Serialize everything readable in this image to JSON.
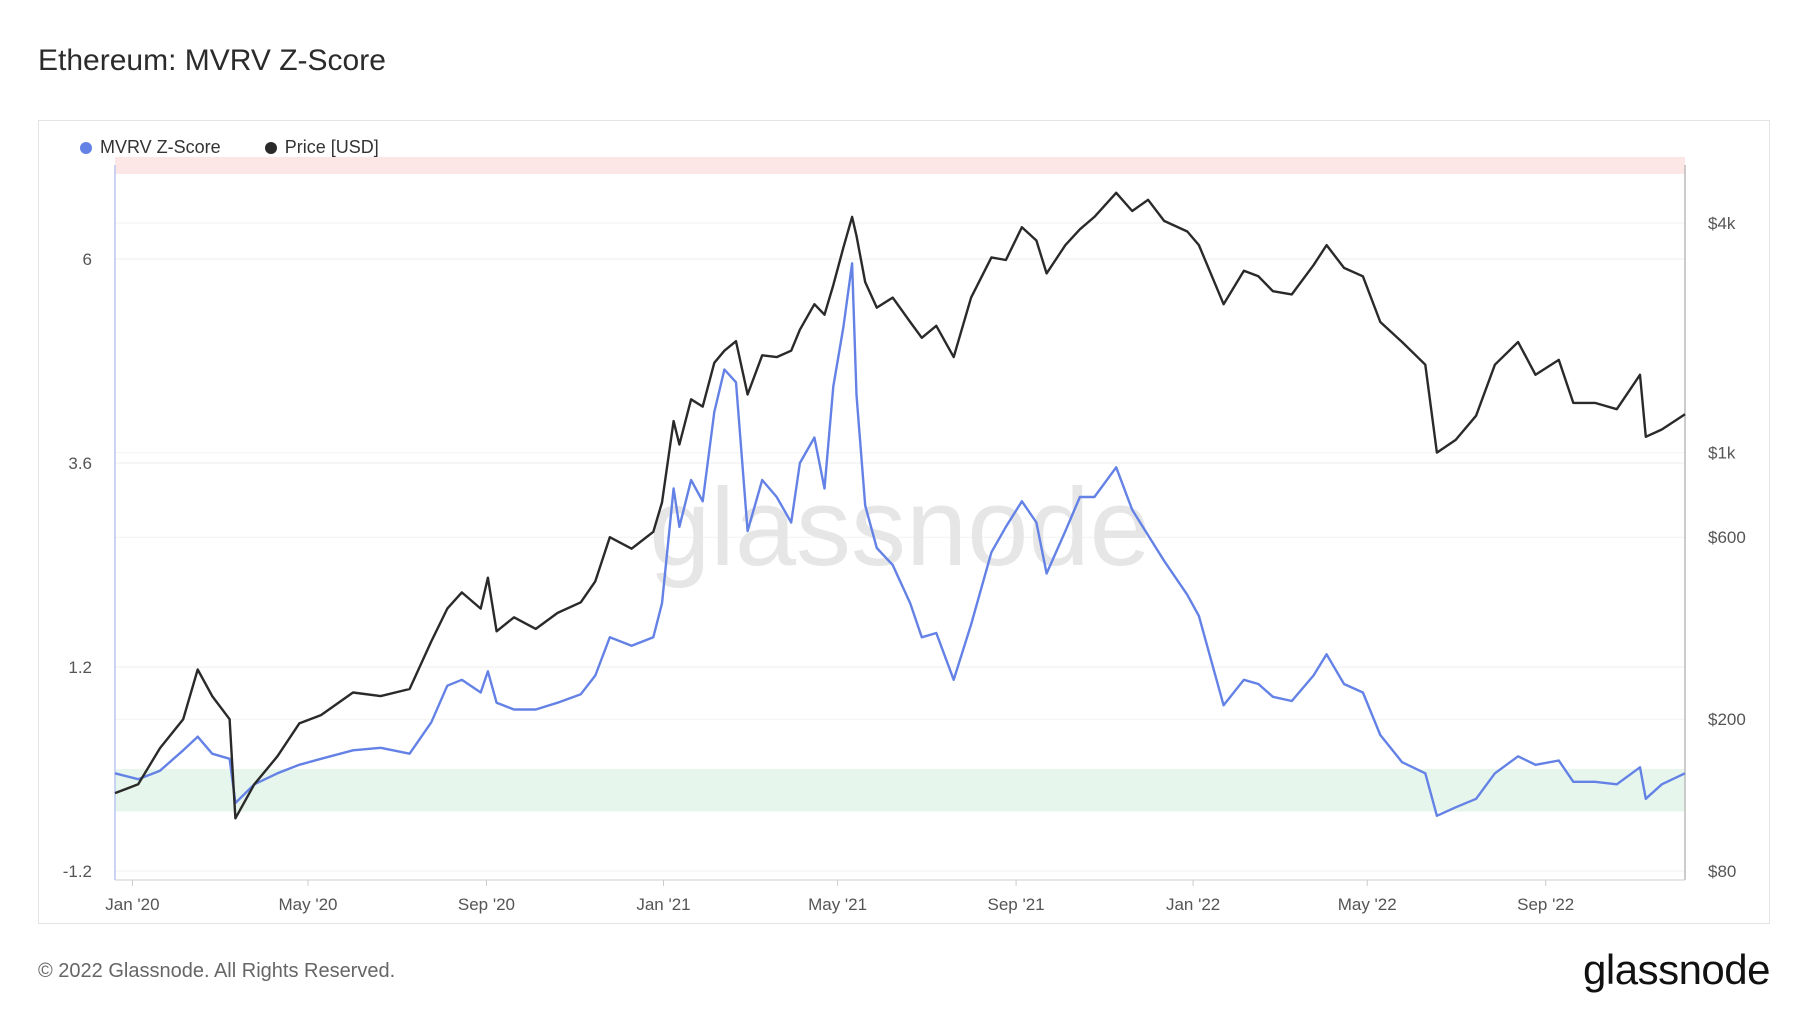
{
  "header": {
    "title": "Ethereum: MVRV Z-Score"
  },
  "footer": {
    "copyright": "© 2022 Glassnode. All Rights Reserved.",
    "brand": "glassnode"
  },
  "watermark": "glassnode",
  "colors": {
    "zscore": "#6482e6",
    "price": "#2a2a2a",
    "red_band": "#fde6e6",
    "green_band": "#e6f6ec"
  },
  "chart_data": {
    "type": "line",
    "title": "Ethereum: MVRV Z-Score",
    "legend_position": "top-left",
    "grid": true,
    "x_ticks": [
      "Jan '20",
      "May '20",
      "Sep '20",
      "Jan '21",
      "May '21",
      "Sep '21",
      "Jan '22",
      "May '22",
      "Sep '22"
    ],
    "x_range": [
      "2019-12-20",
      "2022-12-06"
    ],
    "left_axis": {
      "ticks": [
        "6",
        "3.6",
        "1.2",
        "-1.2"
      ],
      "tick_values": [
        6,
        3.6,
        1.2,
        -1.2
      ],
      "range": [
        -1.2,
        7.0
      ]
    },
    "right_axis": {
      "ticks": [
        "$4k",
        "$1k",
        "$600",
        "$200",
        "$80"
      ],
      "tick_values": [
        4000,
        1000,
        600,
        200,
        80
      ],
      "scale": "log",
      "range": [
        80,
        6500
      ]
    },
    "bands": [
      {
        "axis": "left",
        "from": 7.0,
        "to": 7.2,
        "color": "#fde6e6"
      },
      {
        "axis": "left",
        "from": -0.5,
        "to": 0.0,
        "color": "#e6f6ec"
      }
    ],
    "series": [
      {
        "name": "MVRV Z-Score",
        "axis": "left",
        "color": "#6482e6",
        "points": [
          [
            "2019-12-20",
            -0.05
          ],
          [
            "2020-01-05",
            -0.12
          ],
          [
            "2020-01-20",
            -0.02
          ],
          [
            "2020-02-05",
            0.22
          ],
          [
            "2020-02-15",
            0.38
          ],
          [
            "2020-02-25",
            0.18
          ],
          [
            "2020-03-08",
            0.12
          ],
          [
            "2020-03-12",
            -0.4
          ],
          [
            "2020-03-25",
            -0.18
          ],
          [
            "2020-04-10",
            -0.05
          ],
          [
            "2020-04-25",
            0.05
          ],
          [
            "2020-05-10",
            0.12
          ],
          [
            "2020-06-01",
            0.22
          ],
          [
            "2020-06-20",
            0.25
          ],
          [
            "2020-07-10",
            0.18
          ],
          [
            "2020-07-25",
            0.55
          ],
          [
            "2020-08-05",
            0.98
          ],
          [
            "2020-08-15",
            1.05
          ],
          [
            "2020-08-28",
            0.9
          ],
          [
            "2020-09-02",
            1.15
          ],
          [
            "2020-09-08",
            0.78
          ],
          [
            "2020-09-20",
            0.7
          ],
          [
            "2020-10-05",
            0.7
          ],
          [
            "2020-10-20",
            0.78
          ],
          [
            "2020-11-05",
            0.88
          ],
          [
            "2020-11-15",
            1.1
          ],
          [
            "2020-11-25",
            1.55
          ],
          [
            "2020-12-10",
            1.45
          ],
          [
            "2020-12-25",
            1.55
          ],
          [
            "2020-12-31",
            1.95
          ],
          [
            "2021-01-08",
            3.3
          ],
          [
            "2021-01-12",
            2.85
          ],
          [
            "2021-01-20",
            3.4
          ],
          [
            "2021-01-28",
            3.15
          ],
          [
            "2021-02-05",
            4.2
          ],
          [
            "2021-02-12",
            4.7
          ],
          [
            "2021-02-20",
            4.55
          ],
          [
            "2021-02-28",
            2.8
          ],
          [
            "2021-03-10",
            3.4
          ],
          [
            "2021-03-20",
            3.2
          ],
          [
            "2021-03-30",
            2.9
          ],
          [
            "2021-04-05",
            3.6
          ],
          [
            "2021-04-15",
            3.9
          ],
          [
            "2021-04-22",
            3.3
          ],
          [
            "2021-04-28",
            4.5
          ],
          [
            "2021-05-05",
            5.2
          ],
          [
            "2021-05-11",
            5.95
          ],
          [
            "2021-05-14",
            4.4
          ],
          [
            "2021-05-20",
            3.1
          ],
          [
            "2021-05-28",
            2.6
          ],
          [
            "2021-06-08",
            2.4
          ],
          [
            "2021-06-20",
            1.95
          ],
          [
            "2021-06-28",
            1.55
          ],
          [
            "2021-07-08",
            1.6
          ],
          [
            "2021-07-20",
            1.05
          ],
          [
            "2021-08-01",
            1.7
          ],
          [
            "2021-08-15",
            2.55
          ],
          [
            "2021-08-25",
            2.85
          ],
          [
            "2021-09-05",
            3.15
          ],
          [
            "2021-09-15",
            2.9
          ],
          [
            "2021-09-22",
            2.3
          ],
          [
            "2021-10-05",
            2.8
          ],
          [
            "2021-10-15",
            3.2
          ],
          [
            "2021-10-25",
            3.2
          ],
          [
            "2021-11-09",
            3.55
          ],
          [
            "2021-11-20",
            3.05
          ],
          [
            "2021-12-01",
            2.75
          ],
          [
            "2021-12-12",
            2.45
          ],
          [
            "2021-12-28",
            2.05
          ],
          [
            "2022-01-05",
            1.8
          ],
          [
            "2022-01-22",
            0.75
          ],
          [
            "2022-02-05",
            1.05
          ],
          [
            "2022-02-15",
            1.0
          ],
          [
            "2022-02-25",
            0.85
          ],
          [
            "2022-03-10",
            0.8
          ],
          [
            "2022-03-25",
            1.1
          ],
          [
            "2022-04-03",
            1.35
          ],
          [
            "2022-04-15",
            1.0
          ],
          [
            "2022-04-28",
            0.9
          ],
          [
            "2022-05-10",
            0.4
          ],
          [
            "2022-05-25",
            0.08
          ],
          [
            "2022-06-10",
            -0.05
          ],
          [
            "2022-06-18",
            -0.55
          ],
          [
            "2022-07-01",
            -0.45
          ],
          [
            "2022-07-15",
            -0.35
          ],
          [
            "2022-07-28",
            -0.05
          ],
          [
            "2022-08-13",
            0.15
          ],
          [
            "2022-08-25",
            0.05
          ],
          [
            "2022-09-10",
            0.1
          ],
          [
            "2022-09-20",
            -0.15
          ],
          [
            "2022-10-05",
            -0.15
          ],
          [
            "2022-10-20",
            -0.18
          ],
          [
            "2022-11-05",
            0.02
          ],
          [
            "2022-11-09",
            -0.35
          ],
          [
            "2022-11-20",
            -0.18
          ],
          [
            "2022-12-06",
            -0.05
          ]
        ]
      },
      {
        "name": "Price [USD]",
        "axis": "right",
        "color": "#2a2a2a",
        "points": [
          [
            "2019-12-20",
            128
          ],
          [
            "2020-01-05",
            135
          ],
          [
            "2020-01-20",
            168
          ],
          [
            "2020-02-05",
            200
          ],
          [
            "2020-02-15",
            270
          ],
          [
            "2020-02-25",
            230
          ],
          [
            "2020-03-08",
            200
          ],
          [
            "2020-03-12",
            110
          ],
          [
            "2020-03-25",
            135
          ],
          [
            "2020-04-10",
            160
          ],
          [
            "2020-04-25",
            195
          ],
          [
            "2020-05-10",
            205
          ],
          [
            "2020-06-01",
            235
          ],
          [
            "2020-06-20",
            230
          ],
          [
            "2020-07-10",
            240
          ],
          [
            "2020-07-25",
            320
          ],
          [
            "2020-08-05",
            390
          ],
          [
            "2020-08-15",
            430
          ],
          [
            "2020-08-28",
            390
          ],
          [
            "2020-09-02",
            470
          ],
          [
            "2020-09-08",
            340
          ],
          [
            "2020-09-20",
            370
          ],
          [
            "2020-10-05",
            345
          ],
          [
            "2020-10-20",
            380
          ],
          [
            "2020-11-05",
            405
          ],
          [
            "2020-11-15",
            460
          ],
          [
            "2020-11-25",
            600
          ],
          [
            "2020-12-10",
            560
          ],
          [
            "2020-12-25",
            620
          ],
          [
            "2020-12-31",
            740
          ],
          [
            "2021-01-08",
            1210
          ],
          [
            "2021-01-12",
            1050
          ],
          [
            "2021-01-20",
            1380
          ],
          [
            "2021-01-28",
            1320
          ],
          [
            "2021-02-05",
            1720
          ],
          [
            "2021-02-12",
            1850
          ],
          [
            "2021-02-20",
            1960
          ],
          [
            "2021-02-28",
            1420
          ],
          [
            "2021-03-10",
            1800
          ],
          [
            "2021-03-20",
            1780
          ],
          [
            "2021-03-30",
            1850
          ],
          [
            "2021-04-05",
            2100
          ],
          [
            "2021-04-15",
            2450
          ],
          [
            "2021-04-22",
            2300
          ],
          [
            "2021-04-28",
            2750
          ],
          [
            "2021-05-05",
            3450
          ],
          [
            "2021-05-11",
            4150
          ],
          [
            "2021-05-14",
            3700
          ],
          [
            "2021-05-20",
            2800
          ],
          [
            "2021-05-28",
            2400
          ],
          [
            "2021-06-08",
            2550
          ],
          [
            "2021-06-20",
            2200
          ],
          [
            "2021-06-28",
            2000
          ],
          [
            "2021-07-08",
            2150
          ],
          [
            "2021-07-20",
            1780
          ],
          [
            "2021-08-01",
            2550
          ],
          [
            "2021-08-15",
            3250
          ],
          [
            "2021-08-25",
            3200
          ],
          [
            "2021-09-05",
            3900
          ],
          [
            "2021-09-15",
            3600
          ],
          [
            "2021-09-22",
            2950
          ],
          [
            "2021-10-05",
            3500
          ],
          [
            "2021-10-15",
            3850
          ],
          [
            "2021-10-25",
            4150
          ],
          [
            "2021-11-09",
            4800
          ],
          [
            "2021-11-20",
            4300
          ],
          [
            "2021-12-01",
            4600
          ],
          [
            "2021-12-12",
            4050
          ],
          [
            "2021-12-28",
            3800
          ],
          [
            "2022-01-05",
            3500
          ],
          [
            "2022-01-22",
            2450
          ],
          [
            "2022-02-05",
            3000
          ],
          [
            "2022-02-15",
            2900
          ],
          [
            "2022-02-25",
            2650
          ],
          [
            "2022-03-10",
            2600
          ],
          [
            "2022-03-25",
            3100
          ],
          [
            "2022-04-03",
            3500
          ],
          [
            "2022-04-15",
            3050
          ],
          [
            "2022-04-28",
            2900
          ],
          [
            "2022-05-10",
            2200
          ],
          [
            "2022-05-25",
            1950
          ],
          [
            "2022-06-10",
            1700
          ],
          [
            "2022-06-18",
            1000
          ],
          [
            "2022-07-01",
            1080
          ],
          [
            "2022-07-15",
            1250
          ],
          [
            "2022-07-28",
            1700
          ],
          [
            "2022-08-13",
            1950
          ],
          [
            "2022-08-25",
            1600
          ],
          [
            "2022-09-10",
            1750
          ],
          [
            "2022-09-20",
            1350
          ],
          [
            "2022-10-05",
            1350
          ],
          [
            "2022-10-20",
            1300
          ],
          [
            "2022-11-05",
            1600
          ],
          [
            "2022-11-09",
            1100
          ],
          [
            "2022-11-20",
            1150
          ],
          [
            "2022-12-06",
            1260
          ]
        ]
      }
    ]
  }
}
